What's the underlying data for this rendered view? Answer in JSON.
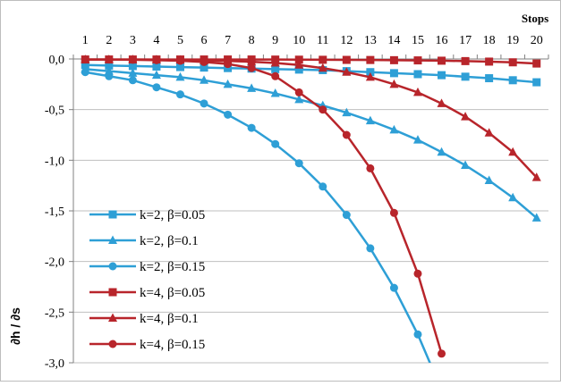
{
  "chart_data": {
    "type": "line",
    "xlabel": "Stops",
    "ylabel": "∂h / ∂s",
    "x": [
      1,
      2,
      3,
      4,
      5,
      6,
      7,
      8,
      9,
      10,
      11,
      12,
      13,
      14,
      15,
      16,
      17,
      18,
      19,
      20
    ],
    "x_ticks": [
      "1",
      "2",
      "3",
      "4",
      "5",
      "6",
      "7",
      "8",
      "9",
      "10",
      "11",
      "12",
      "13",
      "14",
      "15",
      "16",
      "17",
      "18",
      "19",
      "20"
    ],
    "y_ticks": [
      "0,0",
      "-0,5",
      "-1,0",
      "-1,5",
      "-2,0",
      "-2,5",
      "-3,0"
    ],
    "ylim": [
      -3.0,
      0.0
    ],
    "x_axis_position": "top",
    "grid": true,
    "legend_position": "lower-left",
    "series": [
      {
        "name": "k=2, β=0.05",
        "color": "#2e9fd6",
        "marker": "square",
        "values": [
          -0.06,
          -0.065,
          -0.07,
          -0.075,
          -0.08,
          -0.085,
          -0.09,
          -0.095,
          -0.1,
          -0.105,
          -0.11,
          -0.12,
          -0.13,
          -0.14,
          -0.15,
          -0.16,
          -0.175,
          -0.19,
          -0.21,
          -0.23
        ]
      },
      {
        "name": "k=2, β=0.1",
        "color": "#2e9fd6",
        "marker": "triangle",
        "values": [
          -0.1,
          -0.12,
          -0.14,
          -0.16,
          -0.18,
          -0.21,
          -0.25,
          -0.29,
          -0.34,
          -0.4,
          -0.46,
          -0.53,
          -0.61,
          -0.7,
          -0.8,
          -0.92,
          -1.05,
          -1.2,
          -1.37,
          -1.57
        ]
      },
      {
        "name": "k=2, β=0.15",
        "color": "#2e9fd6",
        "marker": "circle",
        "values": [
          -0.13,
          -0.17,
          -0.21,
          -0.28,
          -0.35,
          -0.44,
          -0.55,
          -0.68,
          -0.84,
          -1.03,
          -1.26,
          -1.54,
          -1.87,
          -2.26,
          -2.72,
          -3.27,
          null,
          null,
          null,
          null
        ]
      },
      {
        "name": "k=4, β=0.05",
        "color": "#b8252b",
        "marker": "square",
        "values": [
          -0.005,
          -0.005,
          -0.005,
          -0.005,
          -0.005,
          -0.005,
          -0.005,
          -0.005,
          -0.006,
          -0.007,
          -0.008,
          -0.009,
          -0.01,
          -0.012,
          -0.014,
          -0.017,
          -0.021,
          -0.026,
          -0.033,
          -0.045
        ]
      },
      {
        "name": "k=4, β=0.1",
        "color": "#b8252b",
        "marker": "triangle",
        "values": [
          -0.005,
          -0.005,
          -0.006,
          -0.007,
          -0.01,
          -0.015,
          -0.02,
          -0.028,
          -0.04,
          -0.06,
          -0.09,
          -0.13,
          -0.18,
          -0.25,
          -0.33,
          -0.44,
          -0.57,
          -0.73,
          -0.92,
          -1.17
        ]
      },
      {
        "name": "k=4, β=0.15",
        "color": "#b8252b",
        "marker": "circle",
        "values": [
          -0.005,
          -0.006,
          -0.008,
          -0.012,
          -0.018,
          -0.03,
          -0.05,
          -0.09,
          -0.17,
          -0.33,
          -0.5,
          -0.75,
          -1.08,
          -1.52,
          -2.12,
          -2.91,
          null,
          null,
          null,
          null
        ]
      }
    ]
  }
}
